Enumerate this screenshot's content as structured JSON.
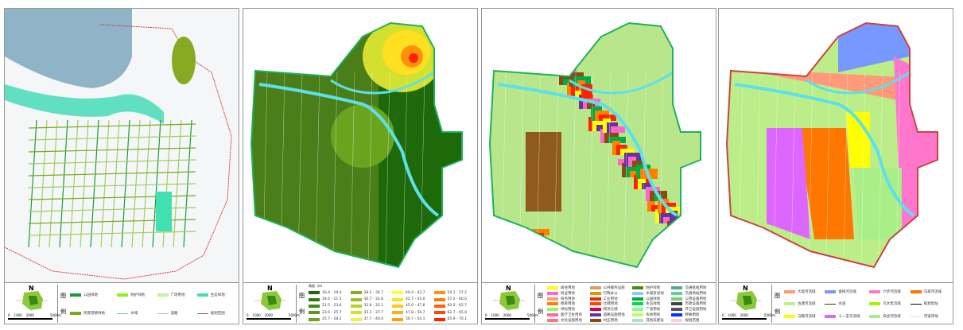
{
  "panels": [
    {
      "id": "green-space",
      "north": "N",
      "scale": [
        "0",
        "1000",
        "2000",
        "5000m"
      ],
      "legend_title_chars": [
        "图",
        "例"
      ],
      "cols": 4,
      "rows": 2,
      "legend": [
        {
          "label": "公园绿地",
          "color": "#1a9a3a"
        },
        {
          "label": "风景游憩绿地",
          "color": "#7aa81a"
        },
        {
          "label": "防护绿地",
          "color": "#8cf01a"
        },
        {
          "label": "水域",
          "color": "#7fb0d0",
          "line": true
        },
        {
          "label": "广场用地",
          "color": "#c8f0a0"
        },
        {
          "label": "道路",
          "color": "#bbbbbb",
          "line": true
        },
        {
          "label": "生态绿地",
          "color": "#40e0b0"
        },
        {
          "label": "规划范围",
          "color": "#d04040",
          "line": true
        }
      ]
    },
    {
      "id": "elevation",
      "north": "N",
      "scale": [
        "0",
        "1000",
        "2000",
        "5000m"
      ],
      "legend_title_chars": [
        "图",
        "例"
      ],
      "legend_title": "高程（m）",
      "cols": 4,
      "rows": 5,
      "legend": [
        {
          "label": "16.4 - 19.4",
          "color": "#1e6a0a"
        },
        {
          "label": "19.4 - 21.5",
          "color": "#2c7a10"
        },
        {
          "label": "21.5 - 23.6",
          "color": "#3e8a14"
        },
        {
          "label": "23.6 - 25.7",
          "color": "#56981a"
        },
        {
          "label": "25.7 - 28.2",
          "color": "#6aa41e"
        },
        {
          "label": "28.2 - 30.7",
          "color": "#84b020"
        },
        {
          "label": "30.7 - 32.8",
          "color": "#9cbe22"
        },
        {
          "label": "32.8 - 35.1",
          "color": "#b8d028"
        },
        {
          "label": "35.1 - 37.7",
          "color": "#d4e030"
        },
        {
          "label": "37.7 - 40.4",
          "color": "#f0f040"
        },
        {
          "label": "40.4 - 42.7",
          "color": "#ffff30"
        },
        {
          "label": "42.7 - 45.0",
          "color": "#ffe020"
        },
        {
          "label": "45.0 - 47.8",
          "color": "#ffc818"
        },
        {
          "label": "47.8 - 50.7",
          "color": "#ffb010"
        },
        {
          "label": "50.7 - 54.1",
          "color": "#ffa010"
        },
        {
          "label": "54.1 - 57.2",
          "color": "#ff9008"
        },
        {
          "label": "57.2 - 60.0",
          "color": "#ff7808"
        },
        {
          "label": "60.0 - 62.7",
          "color": "#ff6008"
        },
        {
          "label": "62.7 - 65.9",
          "color": "#ff4808"
        },
        {
          "label": "65.9 - 70.1",
          "color": "#ff2000"
        }
      ]
    },
    {
      "id": "land-use",
      "north": "N",
      "scale": [
        "0",
        "1000",
        "2000",
        "5000m"
      ],
      "legend_title_chars": [
        "图",
        "例"
      ],
      "cols": 4,
      "rows": 7,
      "legend": [
        {
          "label": "居住用地",
          "color": "#ffff00"
        },
        {
          "label": "商业用地",
          "color": "#ff66cc"
        },
        {
          "label": "商务用地",
          "color": "#ff9977"
        },
        {
          "label": "教育用地",
          "color": "#ff7f00"
        },
        {
          "label": "绿化用地",
          "color": "#88ff66"
        },
        {
          "label": "医疗卫生用地",
          "color": "#ff66aa"
        },
        {
          "label": "文化设施用地",
          "color": "#ff7777"
        },
        {
          "label": "公共服务设施",
          "color": "#d4a070"
        },
        {
          "label": "行政办公",
          "color": "#dd9900"
        },
        {
          "label": "工业用地",
          "color": "#ff2200"
        },
        {
          "label": "仓储用地",
          "color": "#ff4400"
        },
        {
          "label": "物流仓储",
          "color": "#dd0044"
        },
        {
          "label": "道路设施用地",
          "color": "#663399"
        },
        {
          "label": "村庄用地",
          "color": "#8b4a10"
        },
        {
          "label": "防护绿地",
          "color": "#4a8a10"
        },
        {
          "label": "水域及湿地",
          "color": "#88ccff"
        },
        {
          "label": "公园绿地",
          "color": "#00aa44"
        },
        {
          "label": "生态绿地",
          "color": "#00dd33"
        },
        {
          "label": "广场用地",
          "color": "#88ff88"
        },
        {
          "label": "农林用地",
          "color": "#bbff66"
        },
        {
          "label": "其他非建设",
          "color": "#aadddd"
        },
        {
          "label": "交通枢纽用地",
          "color": "#55aa88"
        },
        {
          "label": "交通场站用地",
          "color": "#66cc99"
        },
        {
          "label": "公用设施用地",
          "color": "#77cc77"
        },
        {
          "label": "市政设施用地",
          "color": "#444444"
        },
        {
          "label": "环卫设施用地",
          "color": "#555555"
        },
        {
          "label": "特殊用地",
          "color": "#0033ff"
        },
        {
          "label": "规划范围",
          "color": "#ffccdd"
        }
      ]
    },
    {
      "id": "catchment",
      "north": "N",
      "scale": [
        "0",
        "1000",
        "2000",
        "5000m"
      ],
      "legend_title_chars": [
        "图",
        "例"
      ],
      "cols": 4,
      "rows": 3,
      "legend": [
        {
          "label": "大堤河流域",
          "color": "#ff9977"
        },
        {
          "label": "古塘河流域",
          "color": "#bbee88"
        },
        {
          "label": "马鞍河流域",
          "color": "#ffff00"
        },
        {
          "label": "金梓河流域",
          "color": "#7799ff"
        },
        {
          "label": "水道",
          "color": "#333333",
          "line": true
        },
        {
          "label": "十一支沟流域",
          "color": "#dd66ff"
        },
        {
          "label": "六步河流域",
          "color": "#ff77cc"
        },
        {
          "label": "凡水泵流域",
          "color": "#aaee00"
        },
        {
          "label": "白虎河流域",
          "color": "#aaee88"
        },
        {
          "label": "马家河流域",
          "color": "#ff7700"
        },
        {
          "label": "规划泵站",
          "color": "#000000",
          "line": true
        },
        {
          "label": "河道岸线",
          "color": "#dddddd",
          "line": true
        }
      ]
    }
  ]
}
